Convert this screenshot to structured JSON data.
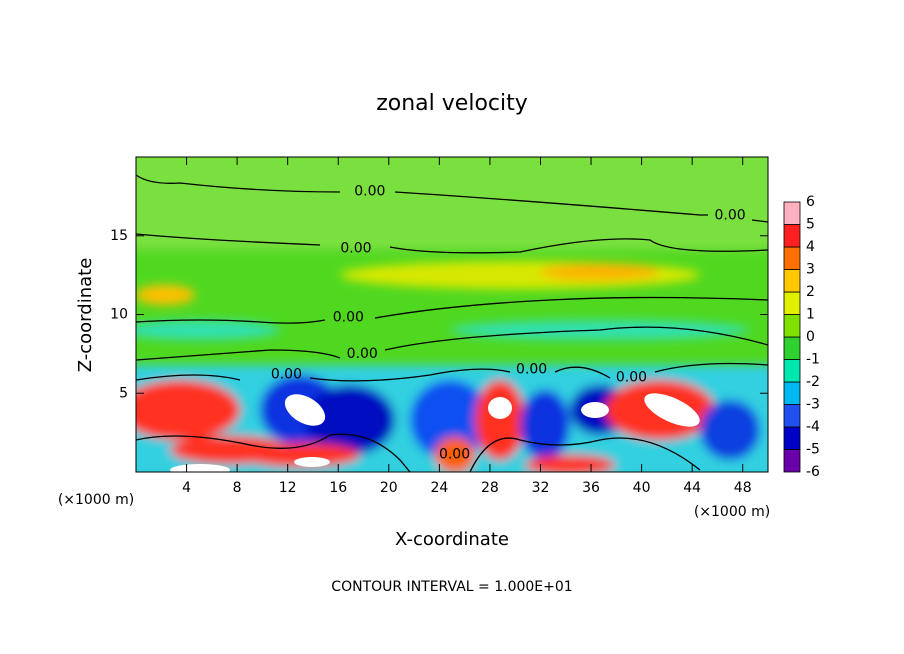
{
  "chart_data": {
    "type": "contour",
    "title": "zonal velocity",
    "x_label": "X-coordinate",
    "y_label": "Z-coordinate",
    "x_unit": "(×1000 m)",
    "y_unit": "(×1000 m)",
    "note": "CONTOUR INTERVAL = 1.000E+01",
    "xlim": [
      0,
      50
    ],
    "xticks": [
      4,
      8,
      12,
      16,
      20,
      24,
      28,
      32,
      36,
      40,
      44,
      48
    ],
    "ylim": [
      0,
      20
    ],
    "yticks": [
      5,
      10,
      15
    ],
    "colorbar": {
      "levels": [
        -6,
        -5,
        -4,
        -3,
        -2,
        -1,
        0,
        1,
        2,
        3,
        4,
        5,
        6
      ],
      "colors": [
        "#6a00a8",
        "#0000c8",
        "#2050f0",
        "#00b8f0",
        "#00e8b0",
        "#30d030",
        "#80e000",
        "#e0f000",
        "#ffc800",
        "#ff7000",
        "#ff2020",
        "#ffb0c0"
      ]
    },
    "contour_labels": [
      {
        "value": 0,
        "label": "0.00",
        "x": 18.5,
        "y": 17.8
      },
      {
        "value": 0,
        "label": "0.00",
        "x": 47.0,
        "y": 16.3
      },
      {
        "value": 0,
        "label": "0.00",
        "x": 17.4,
        "y": 14.2
      },
      {
        "value": 0,
        "label": "0.00",
        "x": 16.8,
        "y": 9.8
      },
      {
        "value": 0,
        "label": "0.00",
        "x": 17.9,
        "y": 7.5
      },
      {
        "value": 0,
        "label": "0.00",
        "x": 11.9,
        "y": 6.2
      },
      {
        "value": 0,
        "label": "0.00",
        "x": 31.3,
        "y": 6.5
      },
      {
        "value": 0,
        "label": "0.00",
        "x": 39.2,
        "y": 6.0
      },
      {
        "value": 0,
        "label": "0.00",
        "x": 25.2,
        "y": 1.1
      }
    ]
  }
}
